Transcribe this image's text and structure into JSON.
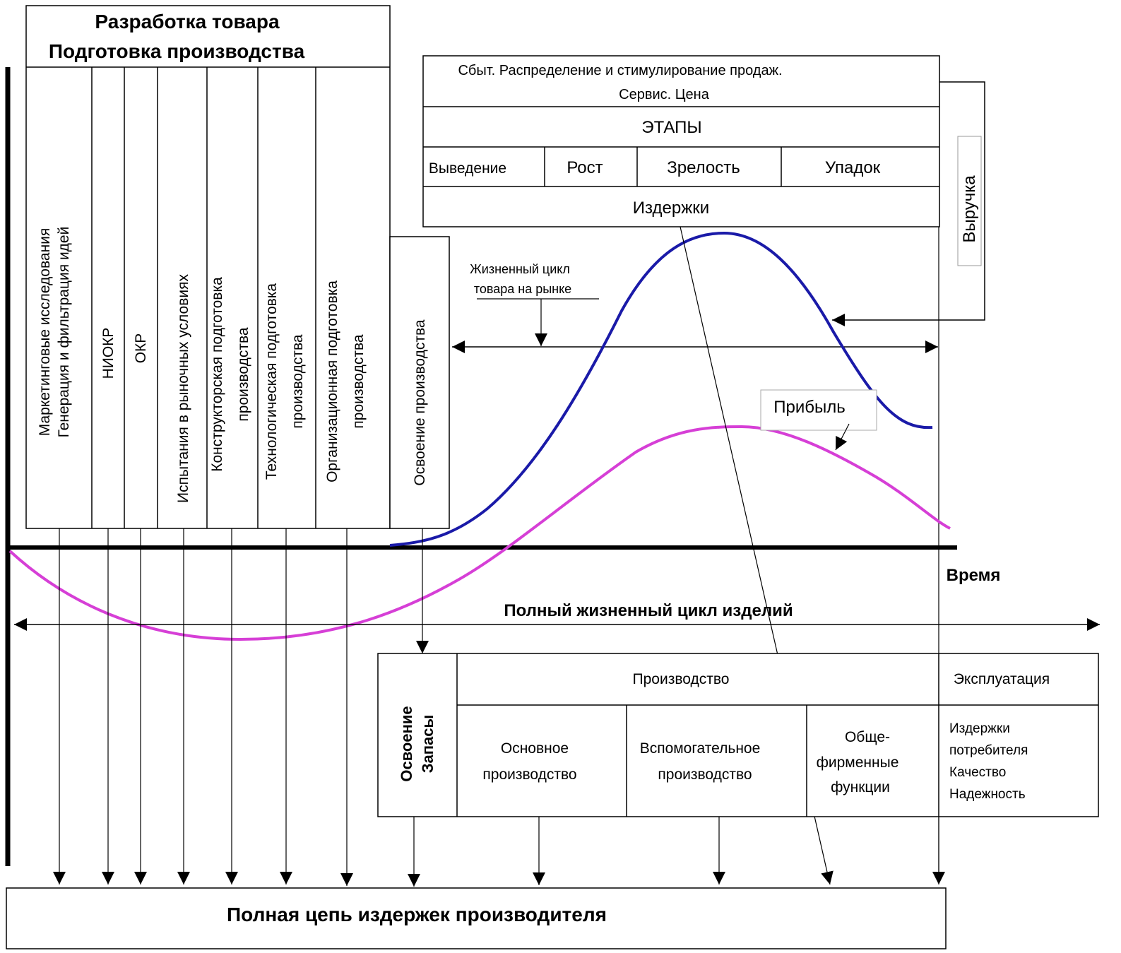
{
  "development": {
    "title_line1": "Разработка товара",
    "title_line2": "Подготовка производства",
    "columns": [
      {
        "line1": "Маркетинговые исследования",
        "line2": "Генерация и фильтрация идей"
      },
      {
        "line1": "НИОКР",
        "line2": ""
      },
      {
        "line1": "ОКР",
        "line2": ""
      },
      {
        "line1": "Испытания в рыночных условиях",
        "line2": ""
      },
      {
        "line1": "Конструкторская подготовка",
        "line2": "производства"
      },
      {
        "line1": "Технологическая подготовка",
        "line2": "производства"
      },
      {
        "line1": "Организационная подготовка",
        "line2": "производства"
      }
    ],
    "mastering": "Освоение производства"
  },
  "market": {
    "header_line1": "Сбыт. Распределение и стимулирование продаж.",
    "header_line2": "Сервис. Цена",
    "stages_title": "ЭТАПЫ",
    "stages": [
      "Выведение",
      "Рост",
      "Зрелость",
      "Упадок"
    ],
    "costs": "Издержки",
    "revenue": "Выручка"
  },
  "lifecycle_note": {
    "line1": "Жизненный цикл",
    "line2": "товара на рынке"
  },
  "profit_label": "Прибыль",
  "time_label": "Время",
  "full_cycle_label": "Полный жизненный цикл изделий",
  "bottom": {
    "mastering_line1": "Освоение",
    "mastering_line2": "Запасы",
    "production_title": "Производство",
    "main_line1": "Основное",
    "main_line2": "производство",
    "aux_line1": "Вспомогательное",
    "aux_line2": "производство",
    "firm_line1": "Обще-",
    "firm_line2": "фирменные",
    "firm_line3": "функции",
    "operation_title": "Эксплуатация",
    "operation_items": [
      "Издержки",
      "потребителя",
      "Качество",
      "Надежность"
    ]
  },
  "total_costs_label": "Полная цепь издержек производителя",
  "colors": {
    "revenue_curve": "#1a1aa8",
    "profit_curve": "#d63fd6",
    "lines": "#000000"
  }
}
